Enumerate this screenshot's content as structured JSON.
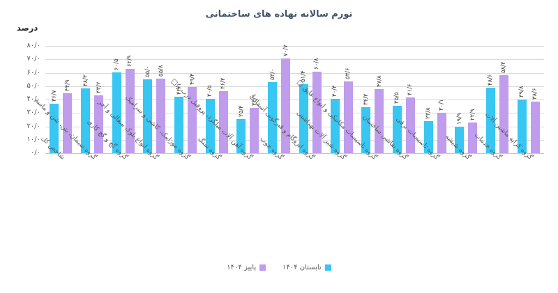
{
  "chart_data": {
    "type": "bar",
    "title": "تورم سالانه نهاده های ساختمانی",
    "ylabel": "درصد",
    "xlabel": "",
    "ylim": [
      0,
      80
    ],
    "y_tick_step": 10,
    "y_tick_labels": [
      "۸۰/۰",
      "۷۰/۰",
      "۶۰/۰",
      "۵۰/۰",
      "۴۰/۰",
      "۳۰/۰",
      "۲۰/۰",
      "۱۰/۰",
      "۰/۰"
    ],
    "grid": true,
    "legend_position": "bottom",
    "categories": [
      "شاخص کل",
      "گروه سیمان، بتن، شن و ماسه",
      "گروه گچ و گچ کاری",
      "گروه انواع بلوک سفالی و آجر",
      "گروه موزاییک، کاشی و سرامیک",
      "گروه سنگ",
      "گروه آهن آلات میلگرد، پروفیل درب و □",
      "گروه چوب",
      "گروه ایزوگام و قیرگونی آسفالت",
      "گروه شیر آلات بهداشتی",
      "گروه تاسیسات مکانیکی و انواع عایق □",
      "گروه نقاشی ساختمان",
      "گروه تاسیسات برقی",
      "گروه شیشه",
      "گروه خدمات",
      "گروه کرایه ماشین آلات"
    ],
    "series": [
      {
        "name": "تابستان ۱۴۰۴",
        "color": "#38c6f2",
        "values": [
          36.7,
          48.3,
          60.5,
          55.0,
          42.1,
          40.5,
          25.4,
          53.0,
          51.4,
          40.4,
          34.2,
          35.5,
          23.8,
          19.9,
          48.6,
          39.8
        ],
        "value_labels": [
          "۳۶/۷",
          "۴۸/۳",
          "۶۰/۵",
          "۵۵/۰",
          "۴۲/۱",
          "۴۰/۵",
          "۲۵/۴",
          "۵۳/۰",
          "۵۱/۴",
          "۴۰/۴",
          "۳۴/۲",
          "۳۵/۵",
          "۲۳/۸",
          "۱۹/۹",
          "۴۸/۶",
          "۳۹/۸"
        ]
      },
      {
        "name": "پاییز ۱۴۰۴",
        "color": "#bf9cec",
        "values": [
          44.9,
          43.2,
          62.9,
          55.8,
          49.4,
          46.2,
          33.9,
          70.7,
          60.8,
          53.6,
          47.8,
          41.6,
          30.1,
          22.9,
          58.2,
          38.6
        ],
        "value_labels": [
          "۴۴/۹",
          "۴۳/۲",
          "۶۲/۹",
          "۵۵/۸",
          "۴۹/۴",
          "۴۶/۲",
          "۳۳/۹",
          "۷۰/۷",
          "۶۰/۸",
          "۵۳/۶",
          "۴۷/۸",
          "۴۱/۶",
          "۳۰/۱",
          "۲۲/۹",
          "۵۸/۲",
          "۳۸/۶"
        ]
      }
    ],
    "colors": {
      "gridline": "#d9d9d9",
      "axis_text": "#595959",
      "value_label_text": "#404040",
      "title_text": "#44546a"
    }
  }
}
